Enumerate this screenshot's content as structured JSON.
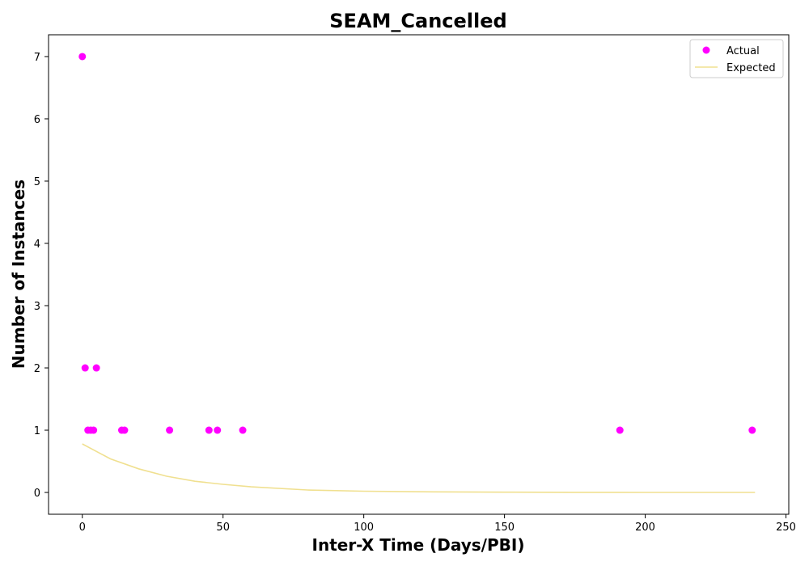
{
  "chart_data": {
    "type": "scatter",
    "title": "SEAM_Cancelled",
    "xlabel": "Inter-X Time (Days/PBI)",
    "ylabel": "Number of Instances",
    "xlim": [
      -12,
      251
    ],
    "ylim": [
      -0.35,
      7.35
    ],
    "xticks": [
      0,
      50,
      100,
      150,
      200,
      250
    ],
    "yticks": [
      0,
      1,
      2,
      3,
      4,
      5,
      6,
      7
    ],
    "grid": false,
    "legend_position": "top-right",
    "series": [
      {
        "name": "Actual",
        "kind": "scatter",
        "color": "#ff00ff",
        "x": [
          0,
          1,
          2,
          3,
          4,
          5,
          14,
          15,
          31,
          45,
          48,
          57,
          191,
          238
        ],
        "y": [
          7,
          2,
          1,
          1,
          1,
          2,
          1,
          1,
          1,
          1,
          1,
          1,
          1,
          1
        ]
      },
      {
        "name": "Expected",
        "kind": "line",
        "color": "#f0e090",
        "x": [
          0,
          10,
          20,
          30,
          40,
          50,
          60,
          80,
          100,
          125,
          150,
          175,
          200,
          239
        ],
        "y": [
          0.78,
          0.54,
          0.38,
          0.26,
          0.18,
          0.13,
          0.09,
          0.04,
          0.02,
          0.01,
          0.005,
          0.002,
          0.001,
          0.0
        ]
      }
    ]
  }
}
